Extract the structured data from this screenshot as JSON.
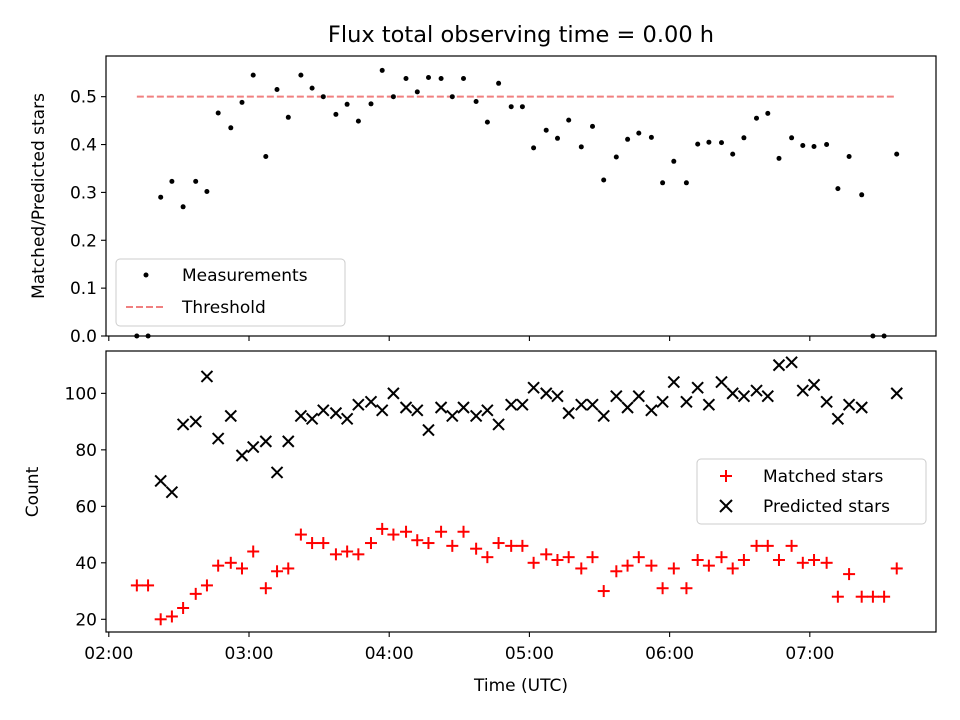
{
  "title": "Flux total observing time = 0.00 h",
  "x_axis": {
    "label": "Time (UTC)",
    "ticks": [
      {
        "label": "02:00",
        "value": 2.0
      },
      {
        "label": "03:00",
        "value": 3.0
      },
      {
        "label": "04:00",
        "value": 4.0
      },
      {
        "label": "05:00",
        "value": 5.0
      },
      {
        "label": "06:00",
        "value": 6.0
      },
      {
        "label": "07:00",
        "value": 7.0
      }
    ],
    "xlim": [
      1.98,
      7.9
    ]
  },
  "chart_data": [
    {
      "type": "scatter",
      "title": "Flux total observing time = 0.00 h",
      "ylabel": "Matched/Predicted stars",
      "xlabel": "",
      "ylim": [
        0,
        0.585
      ],
      "yticks": [
        0.0,
        0.1,
        0.2,
        0.3,
        0.4,
        0.5
      ],
      "ytick_labels": [
        "0.0",
        "0.1",
        "0.2",
        "0.3",
        "0.4",
        "0.5"
      ],
      "grid": false,
      "legend_position": "lower-left",
      "series": [
        {
          "name": "Measurements",
          "marker": "dot",
          "color": "#000000",
          "x": [
            2.2,
            2.28,
            2.37,
            2.45,
            2.53,
            2.62,
            2.7,
            2.78,
            2.87,
            2.95,
            3.03,
            3.12,
            3.2,
            3.28,
            3.37,
            3.45,
            3.53,
            3.62,
            3.7,
            3.78,
            3.87,
            3.95,
            4.03,
            4.12,
            4.2,
            4.28,
            4.37,
            4.45,
            4.53,
            4.62,
            4.7,
            4.78,
            4.87,
            4.95,
            5.03,
            5.12,
            5.2,
            5.28,
            5.37,
            5.45,
            5.53,
            5.62,
            5.7,
            5.78,
            5.87,
            5.95,
            6.03,
            6.12,
            6.2,
            6.28,
            6.37,
            6.45,
            6.53,
            6.62,
            6.7,
            6.78,
            6.87,
            6.95,
            7.03,
            7.12,
            7.2,
            7.28,
            7.37,
            7.45,
            7.53,
            7.62
          ],
          "y": [
            0.0,
            0.0,
            0.29,
            0.323,
            0.27,
            0.323,
            0.302,
            0.466,
            0.435,
            0.488,
            0.545,
            0.375,
            0.515,
            0.457,
            0.545,
            0.518,
            0.5,
            0.463,
            0.484,
            0.449,
            0.485,
            0.555,
            0.5,
            0.538,
            0.51,
            0.54,
            0.538,
            0.5,
            0.538,
            0.49,
            0.447,
            0.528,
            0.479,
            0.479,
            0.393,
            0.43,
            0.413,
            0.451,
            0.395,
            0.438,
            0.326,
            0.374,
            0.411,
            0.424,
            0.415,
            0.32,
            0.365,
            0.32,
            0.401,
            0.405,
            0.404,
            0.38,
            0.414,
            0.455,
            0.465,
            0.371,
            0.414,
            0.398,
            0.396,
            0.4,
            0.308,
            0.375,
            0.295,
            0.0,
            0.0,
            0.38
          ]
        },
        {
          "name": "Threshold",
          "marker": "dashed-line",
          "color": "#f08080",
          "x": [
            2.2,
            7.62
          ],
          "y": [
            0.5,
            0.5
          ]
        }
      ]
    },
    {
      "type": "scatter",
      "title": "",
      "ylabel": "Count",
      "xlabel": "Time (UTC)",
      "ylim": [
        15.5,
        115
      ],
      "yticks": [
        20,
        40,
        60,
        80,
        100
      ],
      "ytick_labels": [
        "20",
        "40",
        "60",
        "80",
        "100"
      ],
      "grid": false,
      "legend_position": "center-right",
      "series": [
        {
          "name": "Matched stars",
          "marker": "plus",
          "color": "#ff0000",
          "x": [
            2.2,
            2.28,
            2.37,
            2.45,
            2.53,
            2.62,
            2.7,
            2.78,
            2.87,
            2.95,
            3.03,
            3.12,
            3.2,
            3.28,
            3.37,
            3.45,
            3.53,
            3.62,
            3.7,
            3.78,
            3.87,
            3.95,
            4.03,
            4.12,
            4.2,
            4.28,
            4.37,
            4.45,
            4.53,
            4.62,
            4.7,
            4.78,
            4.87,
            4.95,
            5.03,
            5.12,
            5.2,
            5.28,
            5.37,
            5.45,
            5.53,
            5.62,
            5.7,
            5.78,
            5.87,
            5.95,
            6.03,
            6.12,
            6.2,
            6.28,
            6.37,
            6.45,
            6.53,
            6.62,
            6.7,
            6.78,
            6.87,
            6.95,
            7.03,
            7.12,
            7.2,
            7.28,
            7.37,
            7.45,
            7.53,
            7.62
          ],
          "y": [
            32,
            32,
            20,
            21,
            24,
            29,
            32,
            39,
            40,
            38,
            44,
            31,
            37,
            38,
            50,
            47,
            47,
            43,
            44,
            43,
            47,
            52,
            50,
            51,
            48,
            47,
            51,
            46,
            51,
            45,
            42,
            47,
            46,
            46,
            40,
            43,
            41,
            42,
            38,
            42,
            30,
            37,
            39,
            42,
            39,
            31,
            38,
            31,
            41,
            39,
            42,
            38,
            41,
            46,
            46,
            41,
            46,
            40,
            41,
            40,
            28,
            36,
            28,
            28,
            28,
            38
          ]
        },
        {
          "name": "Predicted stars",
          "marker": "x",
          "color": "#000000",
          "x": [
            2.37,
            2.45,
            2.53,
            2.62,
            2.7,
            2.78,
            2.87,
            2.95,
            3.03,
            3.12,
            3.2,
            3.28,
            3.37,
            3.45,
            3.53,
            3.62,
            3.7,
            3.78,
            3.87,
            3.95,
            4.03,
            4.12,
            4.2,
            4.28,
            4.37,
            4.45,
            4.53,
            4.62,
            4.7,
            4.78,
            4.87,
            4.95,
            5.03,
            5.12,
            5.2,
            5.28,
            5.37,
            5.45,
            5.53,
            5.62,
            5.7,
            5.78,
            5.87,
            5.95,
            6.03,
            6.12,
            6.2,
            6.28,
            6.37,
            6.45,
            6.53,
            6.62,
            6.7,
            6.78,
            6.87,
            6.95,
            7.03,
            7.12,
            7.2,
            7.28,
            7.37,
            7.62
          ],
          "y": [
            69,
            65,
            89,
            90,
            106,
            84,
            92,
            78,
            81,
            83,
            72,
            83,
            92,
            91,
            94,
            93,
            91,
            96,
            97,
            94,
            100,
            95,
            94,
            87,
            95,
            92,
            95,
            92,
            94,
            89,
            96,
            96,
            102,
            100,
            99,
            93,
            96,
            96,
            92,
            99,
            95,
            99,
            94,
            97,
            104,
            97,
            102,
            96,
            104,
            100,
            99,
            101,
            99,
            110,
            111,
            101,
            103,
            97,
            91,
            96,
            95,
            100
          ]
        }
      ]
    }
  ]
}
